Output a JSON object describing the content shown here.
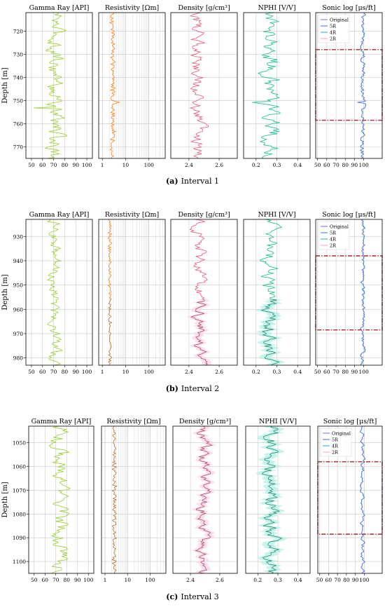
{
  "captions": [
    {
      "letter": "(a)",
      "text": "Interval 1"
    },
    {
      "letter": "(b)",
      "text": "Interval 2"
    },
    {
      "letter": "(c)",
      "text": "Interval 3"
    }
  ],
  "colors": {
    "gamma": "#9acd32",
    "resistivity": "#ff7f0e",
    "density": "#e8577a",
    "nphi": "#17be8f",
    "original": "#7b68ee",
    "r5": "#4169e1",
    "r4": "#20b2aa",
    "r2": "#ff9ecb",
    "window": "#a52a2a",
    "band": "#ffd6ec",
    "band_nphi": "#b8f0e6",
    "pred": "#555555"
  },
  "chart_data": [
    {
      "type": "line",
      "panel": "a",
      "ylabel": "Depth [m]",
      "ylim": [
        775,
        712
      ],
      "yticks": [
        720,
        730,
        740,
        750,
        760,
        770
      ],
      "tracks": [
        {
          "title": "Gamma Ray [API]",
          "xlim": [
            45,
            105
          ],
          "xticks": [
            50,
            60,
            70,
            80,
            90,
            100
          ],
          "scale": "linear",
          "base": 72,
          "amp": 7
        },
        {
          "title": "Resistivity [Ωm]",
          "xlim": [
            0.7,
            500
          ],
          "xticks": [
            1,
            10,
            100
          ],
          "scale": "log",
          "base": 2.8,
          "amp": 0.25
        },
        {
          "title": "Density [g/cm³]",
          "xlim": [
            2.28,
            2.72
          ],
          "xticks": [
            2.4,
            2.6
          ],
          "scale": "linear",
          "base": 2.46,
          "amp": 0.045
        },
        {
          "title": "NPHI [V/V]",
          "xlim": [
            0.14,
            0.46
          ],
          "xticks": [
            0.2,
            0.3,
            0.4
          ],
          "scale": "linear",
          "base": 0.27,
          "amp": 0.04
        },
        {
          "title": "Sonic log [μs/ft]",
          "xlim": [
            48,
            120
          ],
          "xticks": [
            50,
            60,
            70,
            80,
            90,
            100
          ],
          "scale": "linear",
          "base": 99,
          "amp": 2.2,
          "window": [
            728,
            758.5
          ]
        }
      ],
      "legend": [
        "Original",
        "5R",
        "4R",
        "2R"
      ]
    },
    {
      "type": "line",
      "panel": "b",
      "ylabel": "Depth [m]",
      "ylim": [
        983,
        923
      ],
      "yticks": [
        930,
        940,
        950,
        960,
        970,
        980
      ],
      "tracks": [
        {
          "title": "Gamma Ray [API]",
          "xlim": [
            45,
            105
          ],
          "xticks": [
            50,
            60,
            70,
            80,
            90,
            100
          ],
          "scale": "linear",
          "base": 71,
          "amp": 5
        },
        {
          "title": "Resistivity [Ωm]",
          "xlim": [
            0.7,
            500
          ],
          "xticks": [
            1,
            10,
            100
          ],
          "scale": "log",
          "base": 2.1,
          "amp": 0.18
        },
        {
          "title": "Density [g/cm³]",
          "xlim": [
            2.28,
            2.72
          ],
          "xticks": [
            2.4,
            2.6
          ],
          "scale": "linear",
          "base": 2.47,
          "amp": 0.04
        },
        {
          "title": "NPHI [V/V]",
          "xlim": [
            0.14,
            0.46
          ],
          "xticks": [
            0.2,
            0.3,
            0.4
          ],
          "scale": "linear",
          "base": 0.27,
          "amp": 0.035
        },
        {
          "title": "Sonic log [μs/ft]",
          "xlim": [
            48,
            120
          ],
          "xticks": [
            50,
            60,
            70,
            80,
            90,
            100
          ],
          "scale": "linear",
          "base": 99,
          "amp": 2,
          "window": [
            938,
            968.5
          ]
        }
      ],
      "legend": [
        "Original",
        "5R",
        "4R",
        "2R"
      ]
    },
    {
      "type": "line",
      "panel": "c",
      "ylabel": "Depth [m]",
      "ylim": [
        1105,
        1043
      ],
      "yticks": [
        1050,
        1060,
        1070,
        1080,
        1090,
        1100
      ],
      "tracks": [
        {
          "title": "Gamma Ray [API]",
          "xlim": [
            45,
            105
          ],
          "xticks": [
            50,
            60,
            70,
            80,
            90,
            100
          ],
          "scale": "linear",
          "base": 74,
          "amp": 7
        },
        {
          "title": "Resistivity [Ωm]",
          "xlim": [
            0.7,
            500
          ],
          "xticks": [
            1,
            10,
            100
          ],
          "scale": "log",
          "base": 2.6,
          "amp": 0.22
        },
        {
          "title": "Density [g/cm³]",
          "xlim": [
            2.28,
            2.72
          ],
          "xticks": [
            2.4,
            2.6
          ],
          "scale": "linear",
          "base": 2.49,
          "amp": 0.04
        },
        {
          "title": "NPHI [V/V]",
          "xlim": [
            0.14,
            0.46
          ],
          "xticks": [
            0.2,
            0.3,
            0.4
          ],
          "scale": "linear",
          "base": 0.27,
          "amp": 0.035
        },
        {
          "title": "Sonic log [μs/ft]",
          "xlim": [
            48,
            120
          ],
          "xticks": [
            50,
            60,
            70,
            80,
            90,
            100
          ],
          "scale": "linear",
          "base": 98,
          "amp": 2,
          "window": [
            1058,
            1088.5
          ]
        }
      ],
      "legend": [
        "Original",
        "5R",
        "4R",
        "2R"
      ]
    }
  ]
}
